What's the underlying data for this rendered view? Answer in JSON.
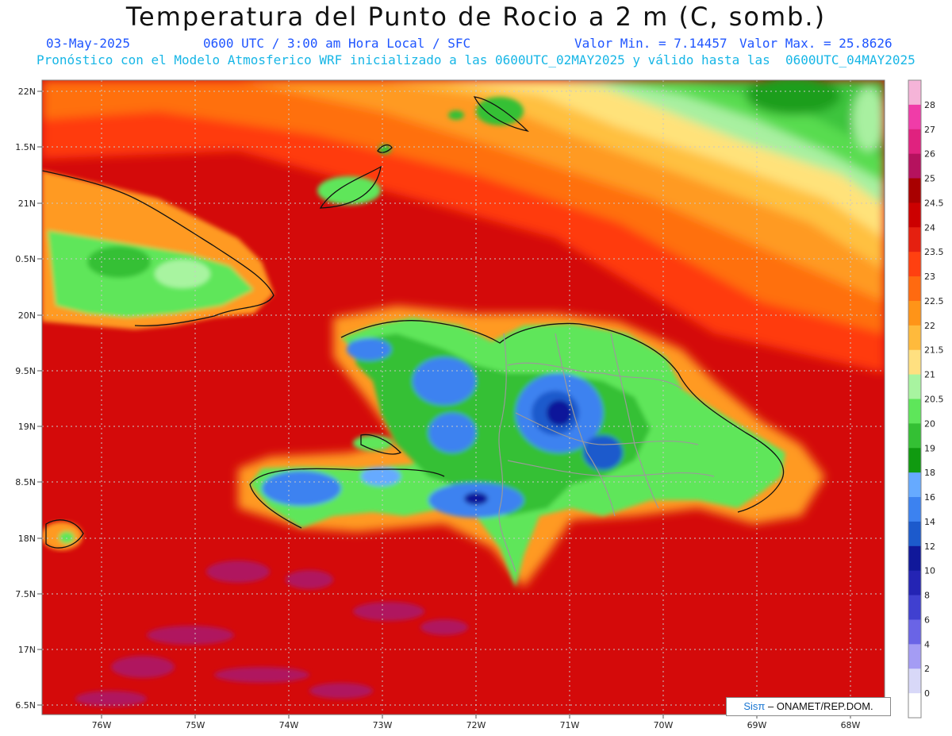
{
  "header": {
    "title": "Temperatura del Punto de Rocio a 2 m (C, somb.)",
    "date": "03-May-2025",
    "time": "0600 UTC / 3:00 am Hora Local / SFC",
    "min_label": "Valor Min. = 7.14457",
    "max_label": "Valor Max. = 25.8626",
    "model_line": "Pronóstico con el Modelo Atmosferico WRF inicializado a las 0600UTC_02MAY2025 y válido hasta las  0600UTC_04MAY2025"
  },
  "axes": {
    "lat_labels": [
      "22N",
      "1.5N",
      "21N",
      "0.5N",
      "20N",
      "9.5N",
      "19N",
      "8.5N",
      "18N",
      "7.5N",
      "17N",
      "6.5N"
    ],
    "lon_labels": [
      "76W",
      "75W",
      "74W",
      "73W",
      "72W",
      "71W",
      "70W",
      "69W",
      "68W"
    ]
  },
  "colorbar": {
    "labels": [
      "28",
      "27",
      "26",
      "25",
      "24.5",
      "24",
      "23.5",
      "23",
      "22.5",
      "22",
      "21.5",
      "21",
      "20.5",
      "20",
      "19",
      "18",
      "16",
      "14",
      "12",
      "10",
      "8",
      "6",
      "4",
      "2",
      "0"
    ],
    "colors": [
      "#f5b4d8",
      "#f03ca8",
      "#e0227f",
      "#b5125e",
      "#a80000",
      "#cc0000",
      "#e52010",
      "#ff4010",
      "#ff6a10",
      "#ff9418",
      "#ffba3c",
      "#ffe080",
      "#a8f4a0",
      "#5ee65a",
      "#34c034",
      "#109a10",
      "#66aaff",
      "#3c82f0",
      "#1c5acc",
      "#10189a",
      "#2424b4",
      "#4040d0",
      "#6a64e6",
      "#a49cf4",
      "#d8d8f8",
      "#ffffff"
    ]
  },
  "credit": {
    "sis": "Sis",
    "pi": "π",
    "rest": " – ONAMET/REP.DOM."
  }
}
